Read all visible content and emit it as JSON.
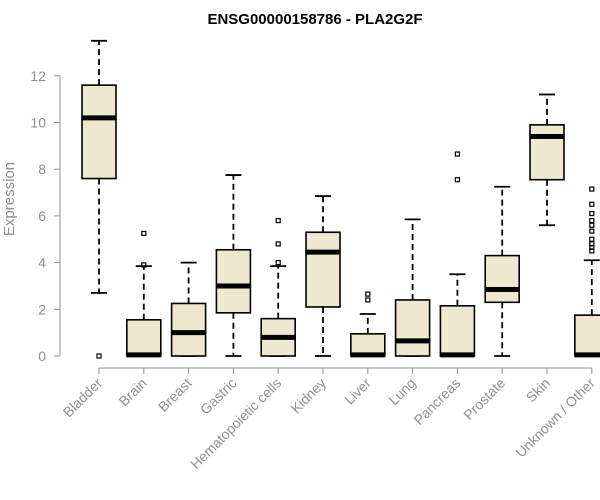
{
  "chart_data": {
    "type": "box",
    "title": "ENSG00000158786 - PLA2G2F",
    "ylabel": "Expression",
    "xlabel": "",
    "ylim": [
      0,
      13.5
    ],
    "yticks": [
      0,
      2,
      4,
      6,
      8,
      10,
      12
    ],
    "box_color": "#EEE8D0",
    "categories": [
      "Bladder",
      "Brain",
      "Breast",
      "Gastric",
      "Hematopoietic cells",
      "Kidney",
      "Liver",
      "Lung",
      "Pancreas",
      "Prostate",
      "Skin",
      "Unknown / Other"
    ],
    "boxes": [
      {
        "min": 2.7,
        "q1": 7.6,
        "median": 10.2,
        "q3": 11.6,
        "max": 13.5,
        "outliers": [
          0
        ]
      },
      {
        "min": 0,
        "q1": 0,
        "median": 0.05,
        "q3": 1.55,
        "max": 3.85,
        "outliers": [
          3.9,
          5.25
        ]
      },
      {
        "min": 0,
        "q1": 0,
        "median": 1.0,
        "q3": 2.25,
        "max": 4.0,
        "outliers": []
      },
      {
        "min": 0,
        "q1": 1.85,
        "median": 3.0,
        "q3": 4.55,
        "max": 7.75,
        "outliers": []
      },
      {
        "min": 0,
        "q1": 0,
        "median": 0.8,
        "q3": 1.6,
        "max": 3.85,
        "outliers": [
          4.0,
          4.8,
          5.8
        ]
      },
      {
        "min": 0,
        "q1": 2.1,
        "median": 4.45,
        "q3": 5.3,
        "max": 6.85,
        "outliers": []
      },
      {
        "min": 0,
        "q1": 0,
        "median": 0.05,
        "q3": 0.95,
        "max": 1.8,
        "outliers": [
          2.4,
          2.65
        ]
      },
      {
        "min": 0,
        "q1": 0,
        "median": 0.65,
        "q3": 2.4,
        "max": 5.85,
        "outliers": []
      },
      {
        "min": 0,
        "q1": 0,
        "median": 0.05,
        "q3": 2.15,
        "max": 3.5,
        "outliers": [
          7.55,
          8.65
        ]
      },
      {
        "min": 0,
        "q1": 2.3,
        "median": 2.85,
        "q3": 4.3,
        "max": 7.25,
        "outliers": []
      },
      {
        "min": 5.6,
        "q1": 7.55,
        "median": 9.4,
        "q3": 9.9,
        "max": 11.2,
        "outliers": []
      },
      {
        "min": 0,
        "q1": 0,
        "median": 0.05,
        "q3": 1.75,
        "max": 4.1,
        "outliers": [
          4.5,
          4.65,
          4.8,
          5.0,
          5.35,
          5.6,
          5.8,
          6.1,
          6.5,
          7.15
        ]
      }
    ]
  }
}
